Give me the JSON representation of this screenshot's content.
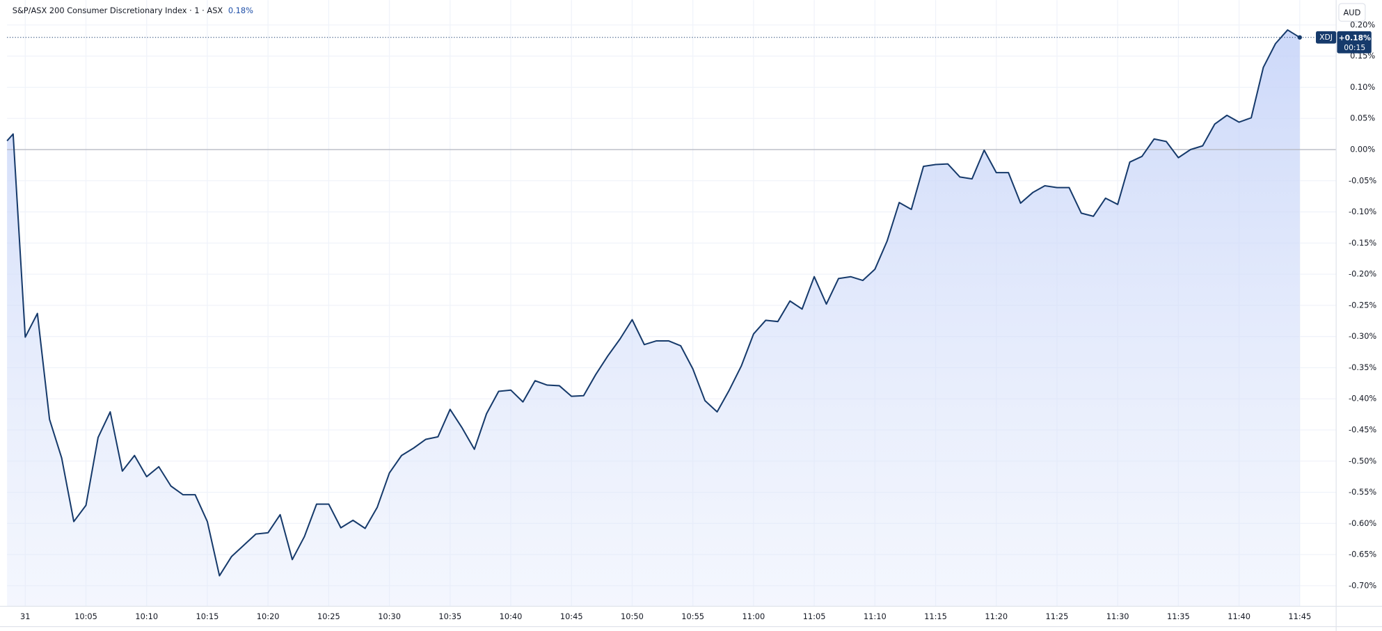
{
  "chart_data": {
    "type": "area",
    "title": "S&P/ASX 200 Consumer Discretionary Index · 1 · ASX",
    "change_label": "0.18%",
    "currency": "AUD",
    "symbol": "XDJ",
    "last_value_label": "+0.18%",
    "countdown": "00:15",
    "color": "#163a6b",
    "grid": true,
    "x": [
      -1.5,
      -1,
      0,
      1,
      2,
      3,
      4,
      5,
      6,
      7,
      8,
      9,
      10,
      11,
      12,
      13,
      14,
      15,
      16,
      17,
      18,
      19,
      20,
      21,
      22,
      23,
      24,
      25,
      26,
      27,
      28,
      29,
      30,
      31,
      32,
      33,
      34,
      35,
      36,
      37,
      38,
      39,
      40,
      41,
      42,
      43,
      44,
      45,
      46,
      47,
      48,
      49,
      50,
      51,
      52,
      53,
      54,
      55,
      56,
      57,
      58,
      59,
      60,
      61,
      62,
      63,
      64,
      65,
      66,
      67,
      68,
      69,
      70,
      71,
      72,
      73,
      74,
      75,
      76,
      77,
      78,
      79,
      80,
      81,
      82,
      83,
      84,
      85,
      86,
      87,
      88,
      89,
      90,
      91,
      92,
      93,
      94,
      95,
      96,
      97,
      98,
      99,
      100,
      101,
      102,
      103,
      104,
      105
    ],
    "values": [
      0.014,
      0.025,
      -0.301,
      -0.263,
      -0.433,
      -0.495,
      -0.597,
      -0.571,
      -0.462,
      -0.421,
      -0.516,
      -0.491,
      -0.525,
      -0.509,
      -0.54,
      -0.554,
      -0.554,
      -0.597,
      -0.684,
      -0.653,
      -0.635,
      -0.617,
      -0.615,
      -0.586,
      -0.658,
      -0.621,
      -0.569,
      -0.569,
      -0.607,
      -0.595,
      -0.608,
      -0.574,
      -0.519,
      -0.491,
      -0.479,
      -0.465,
      -0.461,
      -0.417,
      -0.447,
      -0.481,
      -0.424,
      -0.388,
      -0.386,
      -0.405,
      -0.371,
      -0.378,
      -0.379,
      -0.396,
      -0.395,
      -0.361,
      -0.331,
      -0.304,
      -0.273,
      -0.313,
      -0.307,
      -0.307,
      -0.315,
      -0.352,
      -0.403,
      -0.421,
      -0.386,
      -0.347,
      -0.296,
      -0.274,
      -0.276,
      -0.243,
      -0.256,
      -0.204,
      -0.248,
      -0.207,
      -0.204,
      -0.21,
      -0.192,
      -0.147,
      -0.085,
      -0.096,
      -0.027,
      -0.024,
      -0.023,
      -0.044,
      -0.047,
      -0.001,
      -0.037,
      -0.037,
      -0.086,
      -0.069,
      -0.058,
      -0.061,
      -0.061,
      -0.102,
      -0.107,
      -0.078,
      -0.088,
      -0.02,
      -0.011,
      0.017,
      0.013,
      -0.013,
      0.0,
      0.006,
      0.041,
      0.055,
      0.044,
      0.051,
      0.132,
      0.17,
      0.192,
      0.18
    ],
    "xlim": [
      -1.5,
      108
    ],
    "xticks": [
      {
        "value": 0,
        "label": "31"
      },
      {
        "value": 5,
        "label": "10:05"
      },
      {
        "value": 10,
        "label": "10:10"
      },
      {
        "value": 15,
        "label": "10:15"
      },
      {
        "value": 20,
        "label": "10:20"
      },
      {
        "value": 25,
        "label": "10:25"
      },
      {
        "value": 30,
        "label": "10:30"
      },
      {
        "value": 35,
        "label": "10:35"
      },
      {
        "value": 40,
        "label": "10:40"
      },
      {
        "value": 45,
        "label": "10:45"
      },
      {
        "value": 50,
        "label": "10:50"
      },
      {
        "value": 55,
        "label": "10:55"
      },
      {
        "value": 60,
        "label": "11:00"
      },
      {
        "value": 65,
        "label": "11:05"
      },
      {
        "value": 70,
        "label": "11:10"
      },
      {
        "value": 75,
        "label": "11:15"
      },
      {
        "value": 80,
        "label": "11:20"
      },
      {
        "value": 85,
        "label": "11:25"
      },
      {
        "value": 90,
        "label": "11:30"
      },
      {
        "value": 95,
        "label": "11:35"
      },
      {
        "value": 100,
        "label": "11:40"
      },
      {
        "value": 105,
        "label": "11:45"
      }
    ],
    "ylim": [
      -0.733,
      0.24
    ],
    "yticks": [
      {
        "value": 0.2,
        "label": "0.20%"
      },
      {
        "value": 0.15,
        "label": "0.15%"
      },
      {
        "value": 0.1,
        "label": "0.10%"
      },
      {
        "value": 0.05,
        "label": "0.05%"
      },
      {
        "value": 0,
        "label": "0.00%"
      },
      {
        "value": -0.05,
        "label": "-0.05%"
      },
      {
        "value": -0.1,
        "label": "-0.10%"
      },
      {
        "value": -0.15,
        "label": "-0.15%"
      },
      {
        "value": -0.2,
        "label": "-0.20%"
      },
      {
        "value": -0.25,
        "label": "-0.25%"
      },
      {
        "value": -0.3,
        "label": "-0.30%"
      },
      {
        "value": -0.35,
        "label": "-0.35%"
      },
      {
        "value": -0.4,
        "label": "-0.40%"
      },
      {
        "value": -0.45,
        "label": "-0.45%"
      },
      {
        "value": -0.5,
        "label": "-0.50%"
      },
      {
        "value": -0.55,
        "label": "-0.55%"
      },
      {
        "value": -0.6,
        "label": "-0.60%"
      },
      {
        "value": -0.65,
        "label": "-0.65%"
      },
      {
        "value": -0.7,
        "label": "-0.70%"
      }
    ]
  }
}
